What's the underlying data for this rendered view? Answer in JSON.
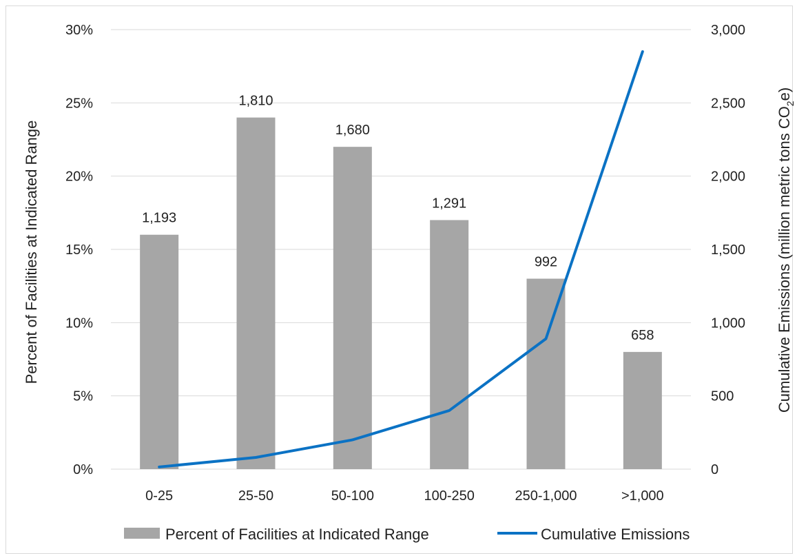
{
  "chart_data": {
    "type": "bar",
    "categories": [
      "0-25",
      "25-50",
      "50-100",
      "100-250",
      "250-1,000",
      ">1,000"
    ],
    "series": [
      {
        "name": "Percent of Facilities at Indicated Range",
        "type": "bar",
        "axis": "left",
        "values": [
          16,
          24,
          22,
          17,
          13,
          8
        ],
        "data_labels": [
          "1,193",
          "1,810",
          "1,680",
          "1,291",
          "992",
          "658"
        ],
        "color": "#a6a6a6"
      },
      {
        "name": "Cumulative Emissions",
        "type": "line",
        "axis": "right",
        "values": [
          15,
          80,
          200,
          400,
          890,
          2850
        ],
        "color": "#0b72c4"
      }
    ],
    "y_left": {
      "label": "Percent of Facilities at Indicated Range",
      "lim": [
        0,
        30
      ],
      "ticks": [
        0,
        5,
        10,
        15,
        20,
        25,
        30
      ],
      "tick_labels": [
        "0%",
        "5%",
        "10%",
        "15%",
        "20%",
        "25%",
        "30%"
      ]
    },
    "y_right": {
      "label_main": "Cumulative Emissions (million metric tons CO",
      "label_sub": "2",
      "label_end": "e)",
      "lim": [
        0,
        3000
      ],
      "ticks": [
        0,
        500,
        1000,
        1500,
        2000,
        2500,
        3000
      ],
      "tick_labels": [
        "0",
        "500",
        "1,000",
        "1,500",
        "2,000",
        "2,500",
        "3,000"
      ]
    },
    "grid": true,
    "legend_position": "bottom"
  }
}
